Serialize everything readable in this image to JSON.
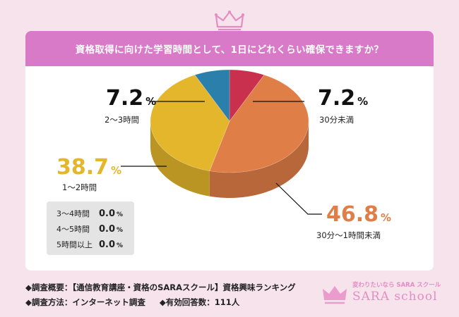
{
  "header": {
    "question": "資格取得に向けた学習時間として、1日にどれくらい確保できますか？"
  },
  "colors": {
    "background": "#f6e3ec",
    "accent": "#d97ac9",
    "slice_30min_under": "#c8304e",
    "slice_30min_1h": "#e07e47",
    "slice_1_2h": "#e4b62b",
    "slice_2_3h": "#2a7fab"
  },
  "chart_data": {
    "type": "pie",
    "title": "資格取得に向けた学習時間として、1日にどれくらい確保できますか？",
    "unit": "%",
    "slices": [
      {
        "label": "30分未満",
        "value": 7.2,
        "value_text": "7.2",
        "color": "#c8304e"
      },
      {
        "label": "30分～1時間未満",
        "value": 46.8,
        "value_text": "46.8",
        "color": "#e07e47"
      },
      {
        "label": "1～2時間",
        "value": 38.7,
        "value_text": "38.7",
        "color": "#e4b62b"
      },
      {
        "label": "2～3時間",
        "value": 7.2,
        "value_text": "7.2",
        "color": "#2a7fab"
      }
    ],
    "zero_items": [
      {
        "label": "3～4時間",
        "value": 0.0,
        "value_text": "0.0"
      },
      {
        "label": "4～5時間",
        "value": 0.0,
        "value_text": "0.0"
      },
      {
        "label": "5時間以上",
        "value": 0.0,
        "value_text": "0.0"
      }
    ]
  },
  "footer": {
    "line1": "◆調査概要：【通信教育講座・資格のSARAスクール】資格興味ランキング",
    "line2_method": "◆調査方法：インターネット調査",
    "line2_count": "◆有効回答数：111人"
  },
  "logo": {
    "tagline": "変わりたいなら SARA スクール",
    "name": "SARA school"
  }
}
